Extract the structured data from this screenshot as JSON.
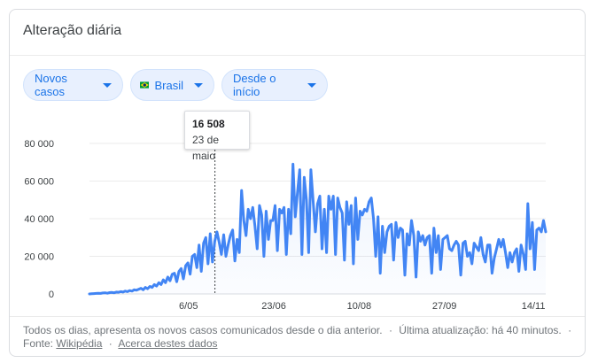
{
  "card": {
    "title": "Alteração diária"
  },
  "filters": {
    "metric": "Novos casos",
    "country": "Brasil",
    "range": "Desde o início",
    "country_flag_icon": "brazil-flag-icon"
  },
  "tooltip": {
    "value": "16 508",
    "date": "23 de maio"
  },
  "chart_data": {
    "type": "area",
    "title": "",
    "xlabel": "",
    "ylabel": "",
    "ylim": [
      0,
      80000
    ],
    "yticks": [
      "0",
      "20 000",
      "40 000",
      "60 000",
      "80 000"
    ],
    "xticks": [
      "6/05",
      "23/06",
      "10/08",
      "27/09",
      "14/11"
    ],
    "highlight": {
      "x": "23 de maio",
      "y": 16508
    },
    "series": [
      {
        "values": [
          0,
          100,
          200,
          300,
          400,
          300,
          500,
          600,
          400,
          700,
          800,
          600,
          1000,
          900,
          1200,
          1000,
          1500,
          1200,
          1800,
          1500,
          2200,
          2000,
          2500,
          3000,
          2200,
          3500,
          2800,
          4000,
          3500,
          5000,
          4200,
          6000,
          5000,
          7500,
          6000,
          9000,
          7000,
          10500,
          11000,
          6500,
          12000,
          13500,
          8000,
          15000,
          16500,
          10500,
          20000,
          21000,
          14000,
          26000,
          12000,
          27000,
          30000,
          16000,
          32000,
          17000,
          28000,
          33000,
          27500,
          21000,
          31500,
          20000,
          26000,
          31000,
          34000,
          17500,
          29000,
          22000,
          55000,
          39000,
          31000,
          45000,
          40000,
          46000,
          36000,
          24000,
          47000,
          42000,
          20000,
          44000,
          29000,
          39000,
          39000,
          47000,
          23000,
          45000,
          43000,
          46000,
          21000,
          45000,
          32000,
          69000,
          41000,
          54000,
          66000,
          21000,
          62000,
          50000,
          22000,
          66000,
          49000,
          33000,
          48000,
          52000,
          24000,
          45000,
          22000,
          52000,
          45000,
          52000,
          21000,
          51000,
          46000,
          43000,
          18000,
          49000,
          37000,
          47000,
          16000,
          51000,
          29000,
          44000,
          42000,
          45000,
          44000,
          49000,
          51000,
          40000,
          20000,
          41000,
          11000,
          36000,
          22000,
          33000,
          36000,
          37000,
          18000,
          38000,
          30000,
          35000,
          34000,
          10000,
          32000,
          26000,
          39000,
          31000,
          9000,
          33000,
          28000,
          31000,
          26000,
          30000,
          31000,
          11000,
          35000,
          22000,
          31000,
          13000,
          29000,
          30000,
          31000,
          24000,
          23000,
          26000,
          28000,
          26000,
          10000,
          27000,
          28000,
          20000,
          22000,
          16000,
          27000,
          25000,
          23000,
          30000,
          21000,
          17000,
          26000,
          26000,
          11000,
          19000,
          24000,
          29000,
          25000,
          29000,
          22000,
          14000,
          22000,
          17000,
          22000,
          24000,
          12000,
          26000,
          21000,
          13000,
          48000,
          24000,
          38000,
          13000,
          34000,
          35000,
          33000,
          39000,
          33000
        ]
      }
    ]
  },
  "footer": {
    "description": "Todos os dias, apresenta os novos casos comunicados desde o dia anterior.",
    "dot": "·",
    "update": "Última atualização: há 40 minutos.",
    "source_label": "Fonte:",
    "source_link": "Wikipédia",
    "about_link": "Acerca destes dados"
  }
}
